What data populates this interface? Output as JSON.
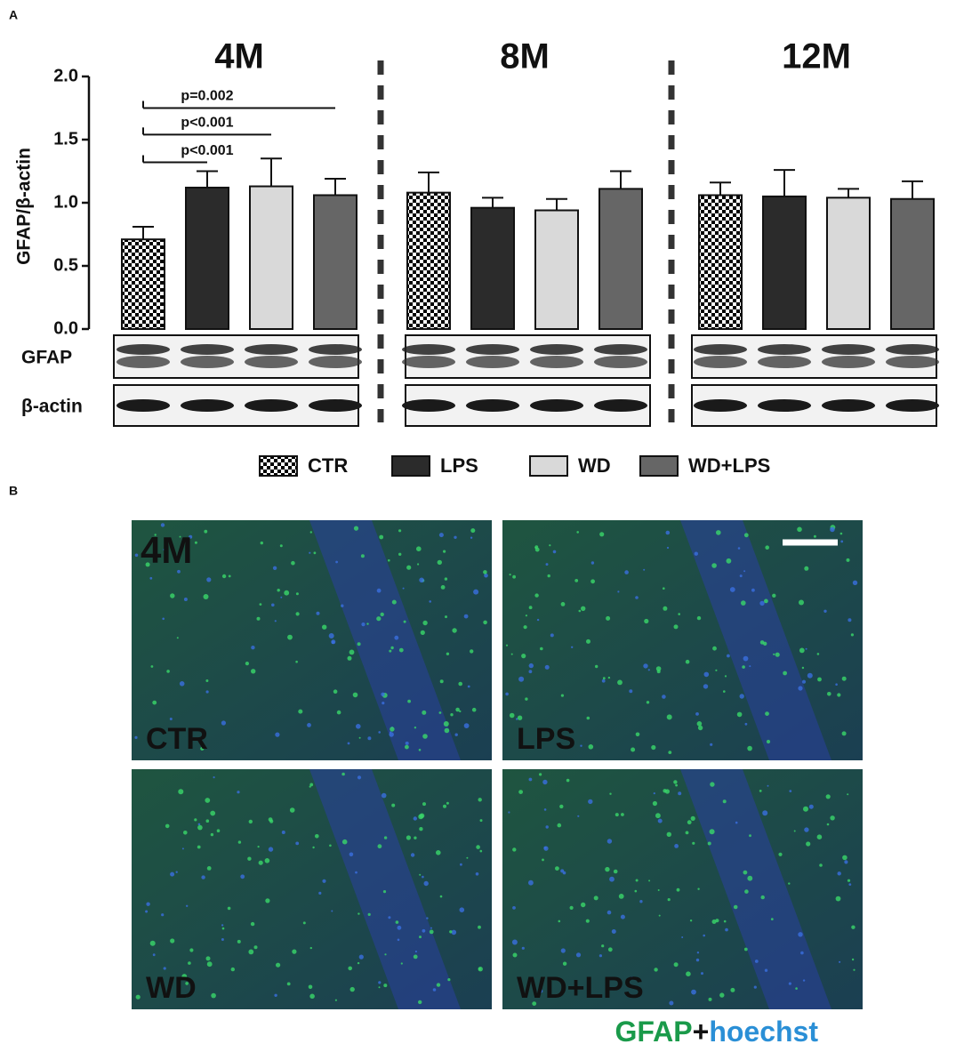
{
  "chart_data": {
    "type": "bar",
    "panel_label": "A",
    "ylabel": "GFAP/β-actin",
    "groups": [
      "4M",
      "8M",
      "12M"
    ],
    "series": [
      {
        "name": "CTR",
        "color": "#000000",
        "pattern": "checker",
        "values": [
          0.71,
          1.08,
          1.06
        ],
        "errors": [
          0.1,
          0.16,
          0.1
        ]
      },
      {
        "name": "LPS",
        "color": "#2b2b2b",
        "values": [
          1.12,
          0.96,
          1.05
        ],
        "errors": [
          0.13,
          0.08,
          0.21
        ]
      },
      {
        "name": "WD",
        "color": "#d9d9d9",
        "values": [
          1.13,
          0.94,
          1.04
        ],
        "errors": [
          0.22,
          0.09,
          0.07
        ]
      },
      {
        "name": "WD+LPS",
        "color": "#666666",
        "values": [
          1.06,
          1.11,
          1.03
        ],
        "errors": [
          0.13,
          0.14,
          0.14
        ]
      }
    ],
    "ylim": [
      0,
      2
    ],
    "yticks": [
      {
        "value": 0,
        "label": "0.0"
      },
      0.5,
      {
        "value": 1,
        "label": "1.0"
      },
      1.5,
      {
        "value": 2,
        "label": "2.0"
      }
    ],
    "comparisons": [
      {
        "label": "p<0.001",
        "group": 0,
        "from": 0,
        "to": 1,
        "y": 1.32
      },
      {
        "label": "p<0.001",
        "group": 0,
        "from": 0,
        "to": 2,
        "y": 1.54
      },
      {
        "label": "p=0.002",
        "group": 0,
        "from": 0,
        "to": 3,
        "y": 1.75
      }
    ],
    "blot_labels": [
      "GFAP",
      "β-actin"
    ]
  },
  "panel_b": {
    "panel_label": "B",
    "age": "4M",
    "images": [
      "CTR",
      "LPS",
      "WD",
      "WD+LPS"
    ],
    "stain": [
      "GFAP",
      "+",
      "hoechst"
    ]
  }
}
